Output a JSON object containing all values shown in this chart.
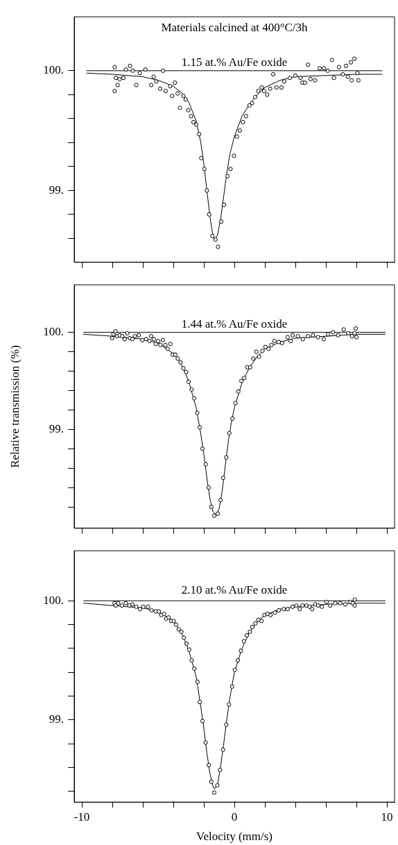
{
  "chart_data": [
    {
      "type": "scatter",
      "title": "Materials calcined at 400°C/3h",
      "subtitle": "1.15 at.% Au/Fe oxide",
      "xlim": [
        -10.5,
        10.5
      ],
      "xticks": [
        -10,
        {
          "value": -8,
          "label": null
        },
        {
          "value": -6,
          "label": null
        },
        {
          "value": -4,
          "label": null
        },
        {
          "value": -2,
          "label": null
        },
        0,
        {
          "value": 2,
          "label": null
        },
        {
          "value": 4,
          "label": null
        },
        {
          "value": 6,
          "label": null
        },
        {
          "value": 8,
          "label": null
        },
        10
      ],
      "ylim": [
        98.4,
        100.45
      ],
      "yticks": [
        {
          "value": 98.6,
          "label": null
        },
        {
          "value": 98.8,
          "label": null
        },
        {
          "value": 99,
          "label": "99."
        },
        {
          "value": 99.2,
          "label": null
        },
        {
          "value": 99.4,
          "label": null
        },
        {
          "value": 99.6,
          "label": null
        },
        {
          "value": 99.8,
          "label": null
        },
        {
          "value": 100,
          "label": "100."
        }
      ],
      "tick_labels": "y",
      "grid": false,
      "series": [
        {
          "type": "line",
          "color": "#000000",
          "marker": "none",
          "x": [
            -9.7,
            9.7
          ],
          "values": [
            100,
            100
          ]
        },
        {
          "type": "line",
          "color": "#000000",
          "marker": "none",
          "x": [
            -9.7,
            -8,
            -6,
            -5,
            -4,
            -3.5,
            -3,
            -2.5,
            -2.2,
            -2,
            -1.8,
            -1.6,
            -1.4,
            -1.25,
            -1.1,
            -0.9,
            -0.7,
            -0.5,
            -0.3,
            0,
            0.5,
            1,
            1.5,
            2,
            3,
            4,
            6,
            8,
            9.7
          ],
          "values": [
            99.98,
            99.97,
            99.95,
            99.92,
            99.87,
            99.82,
            99.74,
            99.58,
            99.4,
            99.22,
            99,
            98.78,
            98.62,
            98.59,
            98.63,
            98.76,
            98.95,
            99.14,
            99.3,
            99.45,
            99.62,
            99.72,
            99.8,
            99.86,
            99.92,
            99.95,
            99.96,
            99.97,
            99.97
          ]
        },
        {
          "color": "#000000",
          "marker": "circle",
          "x": [
            -7.85,
            -7.85,
            -7.77,
            -7.65,
            -7.52,
            -7.27,
            -7.11,
            -6.84,
            -6.66,
            -6.43,
            -6.2,
            -5.83,
            -5.45,
            -5.29,
            -5.12,
            -4.86,
            -4.68,
            -4.51,
            -4.21,
            -4.07,
            -3.9,
            -3.72,
            -3.57,
            -3.34,
            -3.19,
            -3.02,
            -2.84,
            -2.68,
            -2.5,
            -2.31,
            -2.17,
            -1.97,
            -1.8,
            -1.65,
            -1.44,
            -1.24,
            -1.07,
            -0.86,
            -0.68,
            -0.45,
            -0.25,
            -0.03,
            0.17,
            0.36,
            0.56,
            0.76,
            0.99,
            1.16,
            1.37,
            1.57,
            1.79,
            1.95,
            2.15,
            2.35,
            2.55,
            2.76,
            3.09,
            3.27,
            3.64,
            4,
            4.33,
            4.46,
            4.63,
            4.83,
            4.99,
            5.29,
            5.59,
            5.87,
            6.12,
            6.4,
            6.53,
            6.86,
            7.11,
            7.32,
            7.44,
            7.64,
            7.69,
            7.87,
            8.07,
            8.13
          ],
          "values": [
            100.03,
            99.83,
            99.94,
            99.88,
            99.93,
            99.94,
            100.01,
            100.04,
            100,
            99.88,
            99.98,
            100.01,
            99.88,
            99.95,
            99.91,
            99.85,
            100,
            99.83,
            99.87,
            99.79,
            99.9,
            99.81,
            99.69,
            99.79,
            99.76,
            99.67,
            99.62,
            99.57,
            99.55,
            99.47,
            99.27,
            99.18,
            99,
            98.8,
            98.62,
            98.59,
            98.53,
            98.74,
            98.88,
            99.12,
            99.18,
            99.29,
            99.45,
            99.5,
            99.57,
            99.62,
            99.71,
            99.73,
            99.78,
            99.83,
            99.86,
            99.83,
            99.8,
            99.85,
            99.97,
            99.86,
            99.86,
            99.91,
            99.94,
            99.96,
            99.94,
            99.9,
            99.9,
            100.05,
            99.93,
            99.92,
            100.02,
            100.02,
            100,
            100.09,
            99.94,
            100.03,
            99.97,
            100.04,
            99.95,
            100.07,
            99.92,
            100.1,
            99.98,
            99.92
          ]
        }
      ]
    },
    {
      "type": "scatter",
      "subtitle": "1.44 at.% Au/Fe oxide",
      "ylabel": "Relative transmission (%)",
      "xlim": [
        -10.5,
        10.5
      ],
      "xticks": [
        -10,
        {
          "value": -8,
          "label": null
        },
        {
          "value": -6,
          "label": null
        },
        {
          "value": -4,
          "label": null
        },
        {
          "value": -2,
          "label": null
        },
        0,
        {
          "value": 2,
          "label": null
        },
        {
          "value": 4,
          "label": null
        },
        {
          "value": 6,
          "label": null
        },
        {
          "value": 8,
          "label": null
        },
        10
      ],
      "ylim": [
        97.98,
        100.49
      ],
      "yticks": [
        {
          "value": 98.2,
          "label": null
        },
        {
          "value": 98.4,
          "label": null
        },
        {
          "value": 98.6,
          "label": null
        },
        {
          "value": 98.8,
          "label": null
        },
        {
          "value": 99,
          "label": "99."
        },
        {
          "value": 99.2,
          "label": null
        },
        {
          "value": 99.4,
          "label": null
        },
        {
          "value": 99.6,
          "label": null
        },
        {
          "value": 99.8,
          "label": null
        },
        {
          "value": 100,
          "label": "100."
        }
      ],
      "tick_labels": "y",
      "grid": false,
      "series": [
        {
          "type": "line",
          "color": "#000000",
          "marker": "none",
          "x": [
            -9.9,
            9.9
          ],
          "values": [
            100,
            100
          ]
        },
        {
          "type": "line",
          "color": "#000000",
          "marker": "none",
          "x": [
            -9.9,
            -8,
            -6,
            -5,
            -4,
            -3.5,
            -3,
            -2.5,
            -2.2,
            -2,
            -1.8,
            -1.6,
            -1.4,
            -1.2,
            -1,
            -0.8,
            -0.6,
            -0.4,
            -0.2,
            0,
            0.5,
            1,
            1.5,
            2,
            3,
            4,
            6,
            8,
            9.9
          ],
          "values": [
            99.98,
            99.96,
            99.93,
            99.89,
            99.78,
            99.68,
            99.5,
            99.22,
            98.95,
            98.74,
            98.5,
            98.28,
            98.15,
            98.12,
            98.18,
            98.36,
            98.62,
            98.87,
            99.07,
            99.22,
            99.48,
            99.64,
            99.75,
            99.83,
            99.9,
            99.94,
            99.96,
            99.98,
            99.98
          ]
        },
        {
          "color": "#000000",
          "marker": "circle",
          "x": [
            -8.01,
            -7.93,
            -7.8,
            -7.68,
            -7.52,
            -7.35,
            -7.19,
            -7.02,
            -6.85,
            -6.69,
            -6.52,
            -6.27,
            -6.03,
            -5.78,
            -5.56,
            -5.45,
            -5.28,
            -5.15,
            -5,
            -4.85,
            -4.69,
            -4.52,
            -4.37,
            -4.19,
            -4.04,
            -3.87,
            -3.71,
            -3.53,
            -3.34,
            -3.16,
            -3,
            -2.8,
            -2.63,
            -2.43,
            -2.27,
            -2.09,
            -1.87,
            -1.69,
            -1.51,
            -1.32,
            -1.09,
            -0.91,
            -0.73,
            -0.53,
            -0.33,
            -0.13,
            0.07,
            0.26,
            0.46,
            0.65,
            0.84,
            1.04,
            1.24,
            1.44,
            1.62,
            1.84,
            2.04,
            2.24,
            2.43,
            2.63,
            2.91,
            3.13,
            3.49,
            3.69,
            3.82,
            4.16,
            4.49,
            4.82,
            5.15,
            5.48,
            5.86,
            6.14,
            6.47,
            6.8,
            7.17,
            7.47,
            7.72,
            7.88,
            7.96,
            8
          ],
          "values": [
            99.94,
            99.98,
            100.01,
            99.96,
            99.97,
            99.96,
            99.93,
            99.99,
            99.94,
            99.93,
            99.96,
            99.97,
            99.92,
            99.93,
            99.91,
            99.96,
            99.93,
            99.88,
            99.91,
            99.87,
            99.92,
            99.87,
            99.83,
            99.88,
            99.77,
            99.77,
            99.73,
            99.69,
            99.63,
            99.59,
            99.49,
            99.41,
            99.32,
            99.17,
            99.02,
            98.8,
            98.64,
            98.4,
            98.2,
            98.11,
            98.13,
            98.27,
            98.5,
            98.71,
            98.96,
            99.11,
            99.27,
            99.39,
            99.5,
            99.53,
            99.64,
            99.64,
            99.73,
            99.8,
            99.75,
            99.81,
            99.85,
            99.83,
            99.87,
            99.91,
            99.9,
            99.89,
            99.95,
            99.91,
            99.97,
            99.96,
            99.93,
            99.96,
            99.97,
            99.95,
            99.93,
            99.98,
            100,
            99.97,
            100.03,
            99.99,
            99.96,
            99.99,
            100.04,
            99.95
          ]
        }
      ]
    },
    {
      "type": "scatter",
      "subtitle": "2.10 at.% Au/Fe oxide",
      "xlabel": "Velocity (mm/s)",
      "xlim": [
        -10.5,
        10.5
      ],
      "xticks": [
        -10,
        {
          "value": -8,
          "label": null
        },
        {
          "value": -6,
          "label": null
        },
        {
          "value": -4,
          "label": null
        },
        {
          "value": -2,
          "label": null
        },
        0,
        {
          "value": 2,
          "label": null
        },
        {
          "value": 4,
          "label": null
        },
        {
          "value": 6,
          "label": null
        },
        {
          "value": 8,
          "label": null
        },
        10
      ],
      "ylim": [
        98.31,
        100.42
      ],
      "yticks": [
        {
          "value": 98.4,
          "label": null
        },
        {
          "value": 98.6,
          "label": null
        },
        {
          "value": 98.8,
          "label": null
        },
        {
          "value": 99,
          "label": "99."
        },
        {
          "value": 99.2,
          "label": null
        },
        {
          "value": 99.4,
          "label": null
        },
        {
          "value": 99.6,
          "label": null
        },
        {
          "value": 99.8,
          "label": null
        },
        {
          "value": 100,
          "label": "100."
        }
      ],
      "grid": false,
      "series": [
        {
          "type": "line",
          "color": "#000000",
          "marker": "none",
          "x": [
            -9.9,
            9.9
          ],
          "values": [
            100,
            100
          ]
        },
        {
          "type": "line",
          "color": "#000000",
          "marker": "none",
          "x": [
            -9.9,
            -8,
            -6,
            -5,
            -4,
            -3.5,
            -3,
            -2.5,
            -2.2,
            -2,
            -1.8,
            -1.6,
            -1.4,
            -1.3,
            -1.1,
            -0.9,
            -0.7,
            -0.5,
            -0.3,
            0,
            0.5,
            1,
            1.5,
            2,
            3,
            4,
            6,
            8,
            9.9
          ],
          "values": [
            99.98,
            99.96,
            99.94,
            99.91,
            99.83,
            99.74,
            99.59,
            99.36,
            99.11,
            98.93,
            98.72,
            98.55,
            98.44,
            98.42,
            98.46,
            98.61,
            98.8,
            99,
            99.18,
            99.4,
            99.6,
            99.74,
            99.82,
            99.88,
            99.93,
            99.95,
            99.97,
            99.98,
            99.98
          ]
        },
        {
          "color": "#000000",
          "marker": "circle",
          "x": [
            -7.86,
            -7.78,
            -7.62,
            -7.37,
            -7.12,
            -6.88,
            -6.68,
            -6.43,
            -6.18,
            -5.97,
            -5.66,
            -5.43,
            -5.16,
            -4.95,
            -4.79,
            -4.61,
            -4.47,
            -4.31,
            -4.14,
            -3.98,
            -3.82,
            -3.65,
            -3.47,
            -3.31,
            -3.14,
            -2.96,
            -2.8,
            -2.62,
            -2.42,
            -2.27,
            -2.09,
            -1.88,
            -1.68,
            -1.51,
            -1.32,
            -1.12,
            -0.94,
            -0.74,
            -0.53,
            -0.35,
            -0.15,
            0.03,
            0.23,
            0.43,
            0.63,
            0.82,
            1.02,
            1.18,
            1.38,
            1.58,
            1.78,
            1.97,
            2.17,
            2.37,
            2.66,
            2.91,
            3.24,
            3.49,
            3.82,
            4.06,
            4.28,
            4.47,
            4.72,
            4.93,
            5.1,
            5.3,
            5.49,
            5.74,
            6.04,
            6.28,
            6.61,
            6.94,
            7.27,
            7.6,
            7.76,
            7.89,
            7.89
          ],
          "values": [
            99.98,
            99.96,
            99.98,
            99.96,
            99.98,
            99.96,
            99.97,
            99.95,
            99.93,
            99.95,
            99.95,
            99.92,
            99.91,
            99.91,
            99.88,
            99.89,
            99.85,
            99.86,
            99.83,
            99.83,
            99.8,
            99.76,
            99.74,
            99.69,
            99.64,
            99.59,
            99.5,
            99.43,
            99.32,
            99.15,
            98.99,
            98.81,
            98.62,
            98.48,
            98.39,
            98.45,
            98.58,
            98.75,
            98.96,
            99.13,
            99.28,
            99.42,
            99.5,
            99.58,
            99.66,
            99.71,
            99.74,
            99.78,
            99.81,
            99.84,
            99.83,
            99.88,
            99.89,
            99.88,
            99.9,
            99.92,
            99.93,
            99.93,
            99.95,
            99.96,
            99.93,
            99.96,
            99.96,
            99.95,
            99.93,
            99.97,
            99.96,
            99.95,
            99.99,
            99.96,
            99.98,
            99.98,
            99.97,
            99.99,
            99.98,
            100.01,
            99.96
          ]
        }
      ]
    }
  ]
}
